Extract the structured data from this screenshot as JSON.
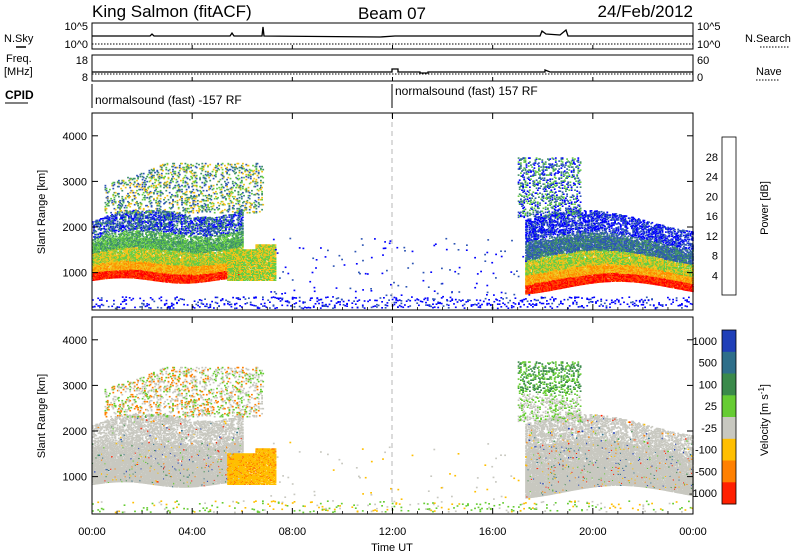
{
  "header": {
    "radar": "King Salmon (fitACF)",
    "beam": "Beam 07",
    "date": "24/Feb/2012"
  },
  "status_labels": {
    "nsky": "N.Sky",
    "nsearch": "N.Search",
    "freq_line1": "Freq.",
    "freq_line2": "[MHz]",
    "nave": "Nave",
    "cpid": "CPID"
  },
  "status_ticks": {
    "noise_left_top": "10^5",
    "noise_left_bottom": "10^0",
    "noise_right_top": "10^5",
    "noise_right_bottom": "10^0",
    "freq_top": "18",
    "freq_bottom": "8",
    "nave_top": "60",
    "nave_bottom": "0"
  },
  "cpid_modes": [
    {
      "label": "normalsound (fast) -157 RF",
      "start_hour": 0
    },
    {
      "label": "normalsound (fast) 157 RF",
      "start_hour": 12
    }
  ],
  "time_axis": {
    "label": "Time UT",
    "ticks": [
      "00:00",
      "04:00",
      "08:00",
      "12:00",
      "16:00",
      "20:00",
      "00:00"
    ],
    "tick_hours": [
      0,
      4,
      8,
      12,
      16,
      20,
      24
    ]
  },
  "range_axis": {
    "label": "Slant Range [km]",
    "ticks": [
      "1000",
      "2000",
      "3000",
      "4000"
    ],
    "tick_values": [
      1000,
      2000,
      3000,
      4000
    ],
    "ylim": [
      180,
      4500
    ]
  },
  "power_scale": {
    "label": "Power [dB]",
    "ticks": [
      "4",
      "8",
      "12",
      "16",
      "20",
      "24",
      "28"
    ],
    "colors": [
      "#0000ff",
      "#2d55b5",
      "#3f8f6a",
      "#66cc44",
      "#f2c21a",
      "#ff8c00",
      "#ff4a00",
      "#ff0000"
    ]
  },
  "velocity_scale": {
    "label": "Velocity [m s^-1]",
    "ticks": [
      "1000",
      "500",
      "100",
      "25",
      "-25",
      "-100",
      "-500",
      "-1000"
    ],
    "colors": [
      "#1f3fb8",
      "#2e6f8a",
      "#3a8a4a",
      "#66cc33",
      "#c8c8c0",
      "#ffbf00",
      "#ff8000",
      "#ff2000"
    ]
  },
  "chart_data": [
    {
      "type": "heatmap",
      "name": "power",
      "x": "time UT (hours)",
      "y": "slant range (km)",
      "xlim": [
        0,
        24
      ],
      "ylim": [
        180,
        4500
      ],
      "colorbar": {
        "label": "Power [dB]",
        "range": [
          2,
          30
        ]
      },
      "features": [
        {
          "region": "morning backscatter band",
          "hours": [
            0,
            7.3
          ],
          "range_km": [
            800,
            2200
          ],
          "power_db": [
            4,
            30
          ]
        },
        {
          "region": "evening backscatter band",
          "hours": [
            17.2,
            24
          ],
          "range_km": [
            600,
            2200
          ],
          "power_db": [
            4,
            30
          ]
        },
        {
          "region": "near-range clutter",
          "hours": [
            0,
            24
          ],
          "range_km": [
            200,
            400
          ],
          "power_db": [
            2,
            8
          ]
        }
      ]
    },
    {
      "type": "heatmap",
      "name": "velocity",
      "x": "time UT (hours)",
      "y": "slant range (km)",
      "xlim": [
        0,
        24
      ],
      "ylim": [
        180,
        4500
      ],
      "colorbar": {
        "label": "Velocity [m s-1]",
        "range": [
          -1000,
          1000
        ]
      },
      "features": [
        {
          "region": "morning ground scatter",
          "hours": [
            0,
            6
          ],
          "range_km": [
            800,
            2000
          ],
          "velocity": [
            -25,
            25
          ]
        },
        {
          "region": "receding patch",
          "hours": [
            5.5,
            7.5
          ],
          "range_km": [
            800,
            1500
          ],
          "velocity": [
            -500,
            -100
          ]
        },
        {
          "region": "evening ground scatter",
          "hours": [
            17.5,
            24
          ],
          "range_km": [
            800,
            2000
          ],
          "velocity": [
            -25,
            25
          ]
        }
      ]
    },
    {
      "type": "line",
      "name": "noise",
      "x": "time UT (hours)",
      "series": [
        {
          "name": "N.Sky",
          "values": "log noise, ~constant near 10^2"
        },
        {
          "name": "N.Search",
          "values": "log noise, ~constant near 10^1"
        }
      ]
    },
    {
      "type": "line",
      "name": "frequency and nave",
      "x": "time UT (hours)",
      "series": [
        {
          "name": "Freq.",
          "values": "~10.5 MHz with small steps near 12:00-12:30"
        },
        {
          "name": "Nave",
          "values": "~15-20"
        }
      ]
    }
  ]
}
